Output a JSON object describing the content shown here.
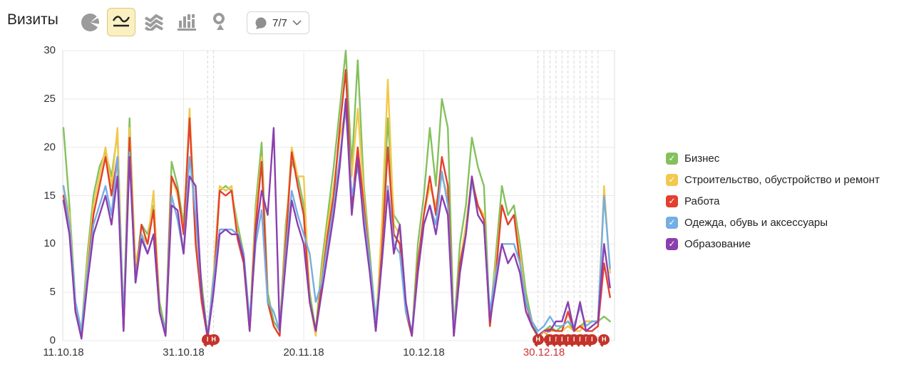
{
  "title": "Визиты",
  "toolbar": {
    "chart_type_icons": [
      "pie-chart",
      "line-chart",
      "stacked-area",
      "columns",
      "geo-map"
    ],
    "selected_chart_type": "line-chart",
    "comments": {
      "count_label": "7/7",
      "bubble_icon": "comment-bubble-icon",
      "chevron_icon": "chevron-down-icon"
    }
  },
  "colors": {
    "grid": "#e9e9e9",
    "plot_border": "#dddddd",
    "dashed_guide": "#d6d6d6",
    "axis_text": "#333333",
    "highlight_tick": "#cc3333",
    "badge": "#c4332a",
    "icon_gray": "#9b9b9b",
    "selected_btn_bg": "#faf0c2",
    "selected_btn_border": "#dcc87a"
  },
  "legend": [
    {
      "label": "Бизнес",
      "color": "#84c15d",
      "checked": true
    },
    {
      "label": "Строительство, обустройство и ремонт",
      "color": "#f2c94c",
      "checked": true
    },
    {
      "label": "Работа",
      "color": "#e2402f",
      "checked": true
    },
    {
      "label": "Одежда, обувь и аксессуары",
      "color": "#74aee4",
      "checked": true
    },
    {
      "label": "Образование",
      "color": "#8b3fae",
      "checked": true
    }
  ],
  "chart_data": {
    "type": "line",
    "ylabel": "",
    "xlabel": "",
    "ylim": [
      0,
      30
    ],
    "y_ticks": [
      0,
      5,
      10,
      15,
      20,
      25,
      30
    ],
    "grid": true,
    "legend_position": "right",
    "x_ticks": [
      {
        "day": 0,
        "label": "11.10.18",
        "highlight": false
      },
      {
        "day": 20,
        "label": "31.10.18",
        "highlight": false
      },
      {
        "day": 40,
        "label": "20.11.18",
        "highlight": false
      },
      {
        "day": 60,
        "label": "10.12.18",
        "highlight": false
      },
      {
        "day": 80,
        "label": "30.12.18",
        "highlight": true
      }
    ],
    "series": [
      {
        "name": "Бизнес",
        "color": "#84c15d",
        "values": [
          22,
          14,
          4,
          1,
          9,
          15,
          18,
          19.5,
          17,
          21.5,
          2,
          23,
          7,
          12,
          11,
          14,
          4,
          1,
          18.5,
          16,
          12,
          23,
          12,
          6,
          0.4,
          6,
          15.5,
          16,
          15.5,
          12,
          9,
          1.5,
          14,
          20.5,
          5,
          2,
          1,
          12,
          18.5,
          17,
          14,
          5,
          1,
          8,
          13,
          18,
          24,
          30,
          18,
          29,
          16,
          9,
          2,
          10,
          23,
          13,
          12,
          4,
          0.5,
          10,
          15,
          22,
          16,
          25,
          22,
          1,
          10,
          14,
          21,
          18,
          16,
          2,
          9,
          16,
          13,
          14,
          10,
          5,
          2,
          0.5,
          1,
          1.5,
          1,
          1.5,
          2,
          1,
          1.5,
          2,
          2,
          2,
          2.5,
          2
        ]
      },
      {
        "name": "Строительство, обустройство и ремонт",
        "color": "#f2c94c",
        "values": [
          16,
          13,
          3,
          0.5,
          8,
          14,
          17,
          20,
          16,
          22,
          1,
          22,
          8,
          11,
          10,
          15.5,
          3,
          0.5,
          17,
          15,
          11.5,
          24,
          11,
          5,
          0.3,
          7,
          16,
          15.5,
          16,
          11,
          8.5,
          1,
          13,
          19,
          4,
          1.5,
          0.5,
          11,
          20,
          17,
          17,
          4,
          0.5,
          7,
          12,
          16,
          21,
          24,
          17,
          24,
          15,
          8,
          1,
          12,
          27,
          12,
          11,
          3,
          0.5,
          8,
          13,
          16,
          14,
          17,
          15,
          0.5,
          8,
          12,
          17,
          14,
          13,
          1.5,
          8,
          14,
          12,
          13,
          9,
          4,
          1.5,
          0.3,
          0.5,
          1,
          1,
          1,
          1.5,
          1,
          1,
          2,
          2,
          2,
          16,
          7
        ]
      },
      {
        "name": "Работа",
        "color": "#e2402f",
        "values": [
          15,
          12,
          3,
          0.5,
          7,
          13,
          16,
          19,
          15,
          19,
          1,
          21,
          6,
          12,
          10,
          13.5,
          3,
          0.5,
          17,
          15.5,
          11,
          23,
          10,
          4,
          0.3,
          5.5,
          15.5,
          15,
          15.5,
          10.5,
          8,
          1,
          12,
          18.5,
          4,
          1.5,
          0.5,
          10,
          19.5,
          16,
          13,
          4,
          1,
          6,
          11,
          15,
          22,
          28,
          14,
          20,
          14,
          8,
          1,
          9,
          20,
          11,
          10,
          3,
          0.5,
          8,
          13,
          17,
          13,
          19,
          16,
          0.5,
          8,
          11,
          16.5,
          14,
          12.5,
          1.5,
          7,
          14,
          12,
          13,
          8,
          4,
          1.5,
          0.5,
          1,
          1.2,
          1,
          1,
          3,
          1,
          1.5,
          1,
          1,
          1.5,
          8,
          4.5
        ]
      },
      {
        "name": "Одежда, обувь и аксессуары",
        "color": "#74aee4",
        "values": [
          16,
          12,
          4,
          1,
          7,
          12,
          14,
          16,
          13,
          19,
          2,
          19.5,
          6,
          11,
          9,
          11,
          3,
          1,
          15,
          12.5,
          9,
          19,
          13,
          5,
          0.5,
          6.5,
          11.5,
          11.5,
          11.5,
          11,
          9,
          2,
          10,
          13.5,
          4,
          3,
          1,
          9,
          15.5,
          13,
          11,
          9,
          4,
          6,
          10,
          14,
          19,
          24,
          15,
          18,
          13,
          8,
          2,
          8,
          16,
          10,
          9,
          3,
          1,
          7,
          12,
          14,
          12,
          17.5,
          14,
          1,
          7,
          11,
          16.5,
          13,
          12,
          3,
          7,
          10,
          10,
          10,
          8,
          4,
          2,
          1,
          1.5,
          2.5,
          1.5,
          1.5,
          2,
          1.5,
          3.5,
          1.5,
          2,
          2,
          15,
          7.5
        ]
      },
      {
        "name": "Образование",
        "color": "#8b3fae",
        "values": [
          14.5,
          11,
          3,
          0.2,
          6,
          11,
          13,
          15,
          12,
          17,
          1,
          19,
          6,
          10.5,
          9,
          11,
          3,
          0.5,
          14,
          13.5,
          9,
          17,
          16,
          5,
          0.3,
          5,
          11,
          11.5,
          11,
          11,
          8.5,
          1,
          11,
          15.5,
          13,
          22,
          1,
          8,
          14.5,
          12,
          10,
          4,
          1,
          5,
          9,
          13,
          18,
          25,
          13,
          19,
          12,
          7,
          1,
          8,
          15.5,
          9,
          12,
          4,
          0.5,
          7,
          12,
          14,
          11,
          15,
          13,
          0.5,
          7,
          11,
          17,
          13,
          12,
          2,
          6,
          10,
          8,
          9,
          7,
          3,
          1.5,
          0.5,
          1,
          1,
          2,
          2,
          4,
          1,
          4,
          1,
          1.5,
          2,
          10,
          5.5
        ]
      }
    ],
    "annotations": [
      {
        "day": 24,
        "letter": "І"
      },
      {
        "day": 25,
        "letter": "Н"
      },
      {
        "day": 79,
        "letter": "Н"
      },
      {
        "day": 81,
        "letter": "І"
      },
      {
        "day": 82,
        "letter": "І"
      },
      {
        "day": 83,
        "letter": "І"
      },
      {
        "day": 84,
        "letter": "І"
      },
      {
        "day": 85,
        "letter": "І"
      },
      {
        "day": 86,
        "letter": "І"
      },
      {
        "day": 87,
        "letter": "І"
      },
      {
        "day": 88,
        "letter": "І"
      },
      {
        "day": 90,
        "letter": "Н"
      }
    ],
    "dashed_guide_days": [
      24,
      25,
      79,
      80,
      81,
      82,
      83,
      84,
      85,
      86,
      87,
      88,
      89
    ],
    "point_marker": {
      "day": 80,
      "value": 0.5,
      "color": "#f0a63c"
    }
  }
}
